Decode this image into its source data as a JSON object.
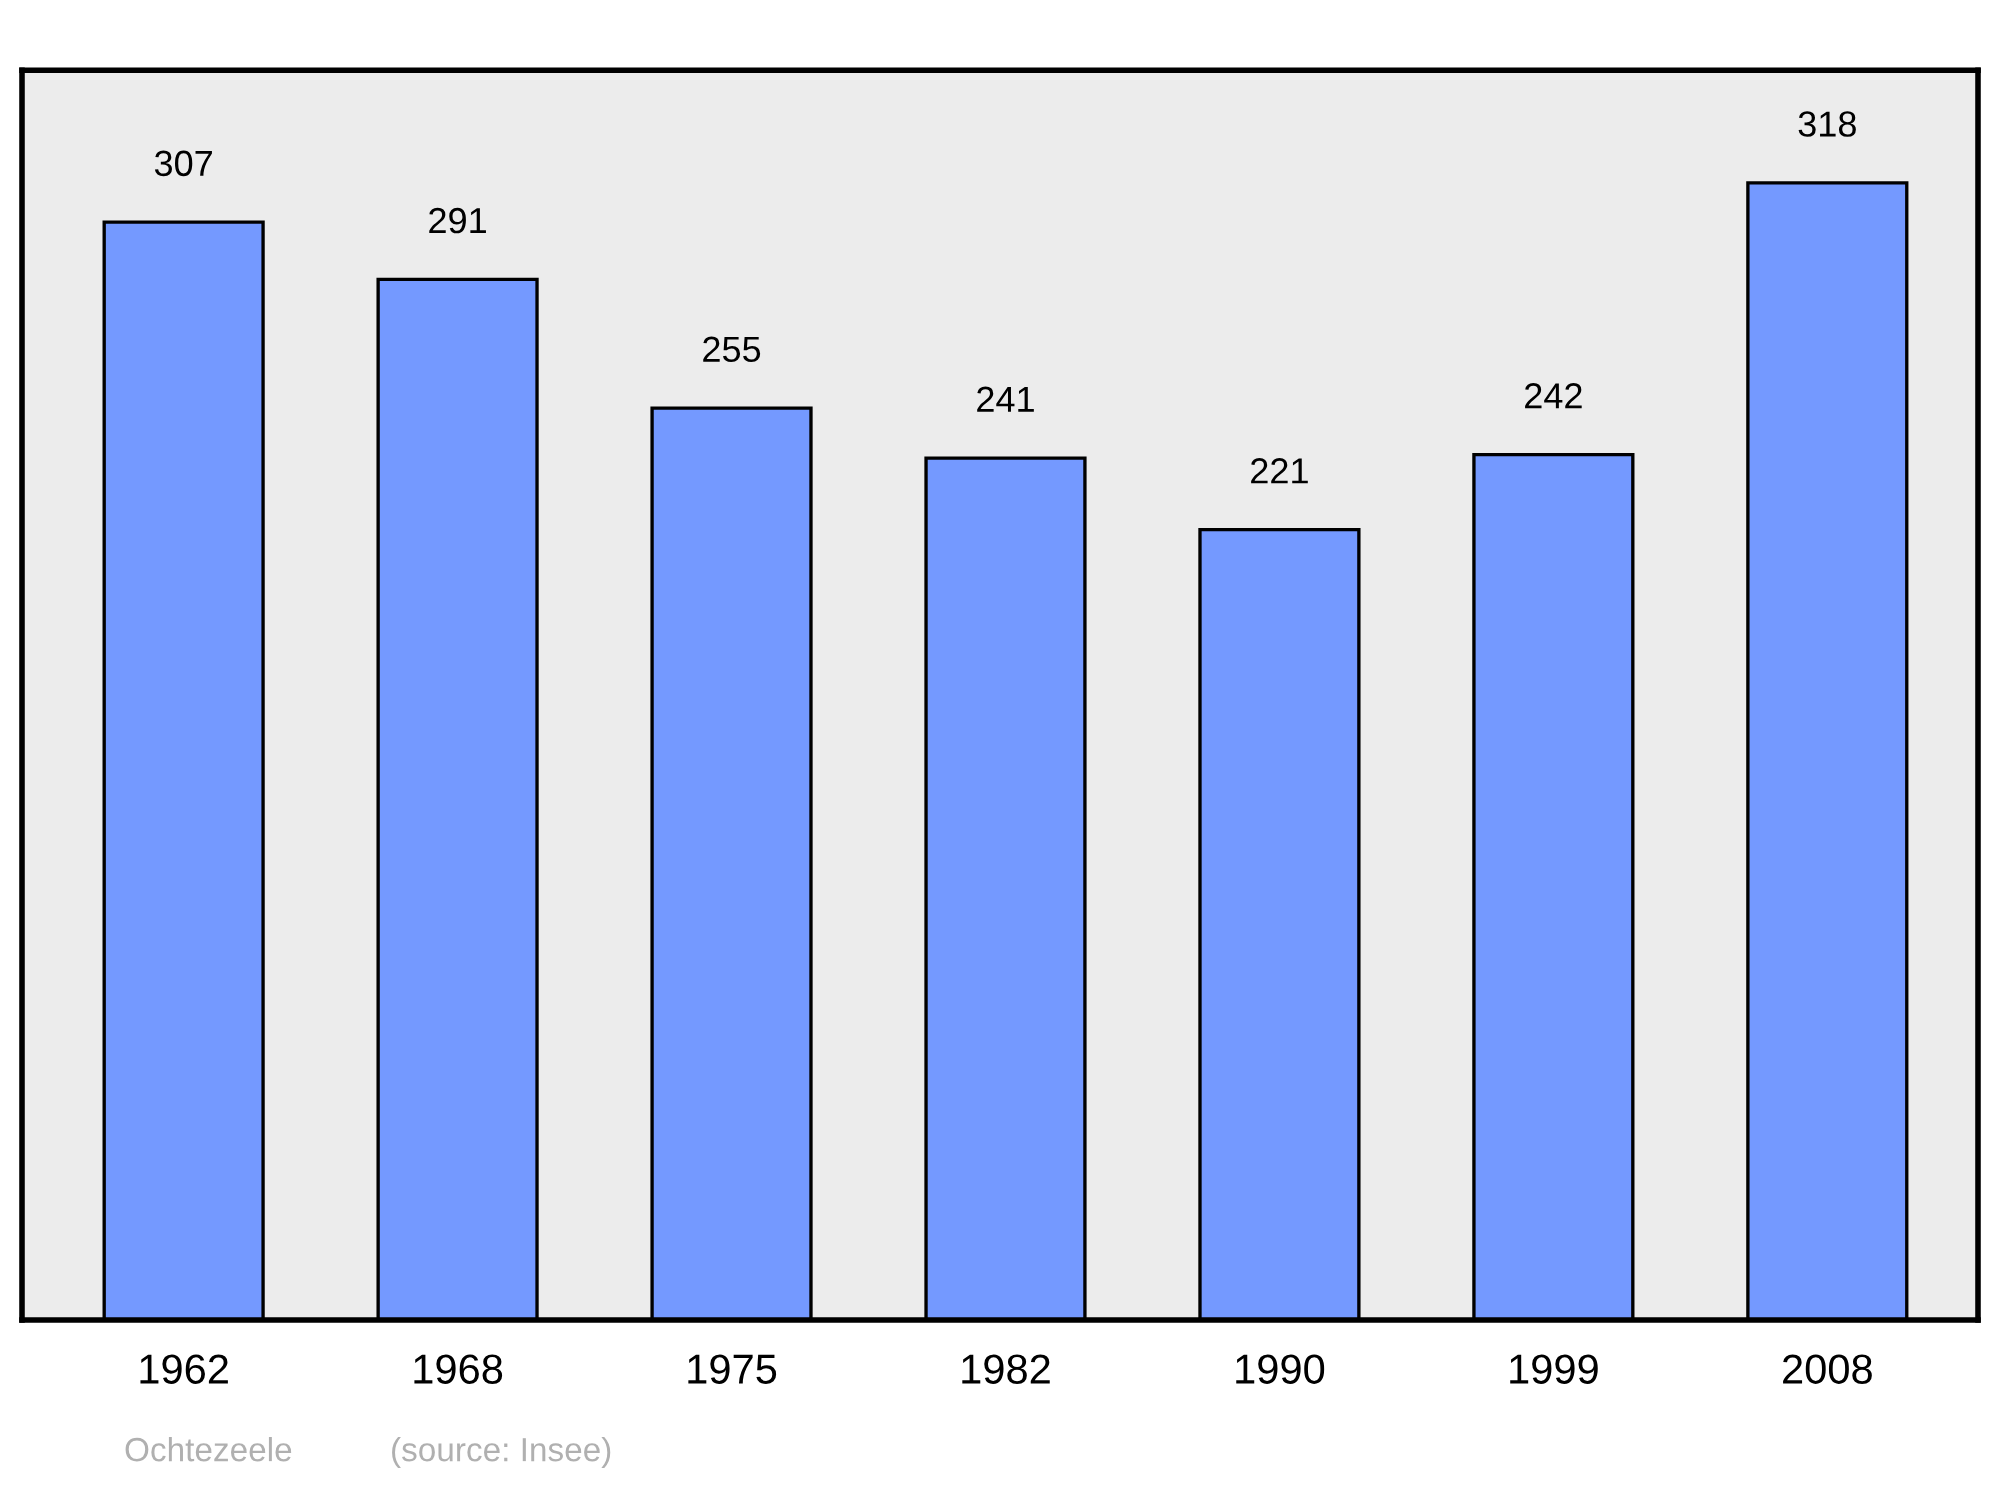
{
  "chart_data": {
    "type": "bar",
    "categories": [
      "1962",
      "1968",
      "1975",
      "1982",
      "1990",
      "1999",
      "2008"
    ],
    "values": [
      307,
      291,
      255,
      241,
      221,
      242,
      318
    ],
    "color": "#7499ff",
    "data_labels": true,
    "ylim": [
      0,
      349.5
    ],
    "grid": false,
    "legend": false,
    "tick_labels": "x",
    "annotations": [
      "Ochtezeele",
      "(source: Insee)"
    ]
  }
}
